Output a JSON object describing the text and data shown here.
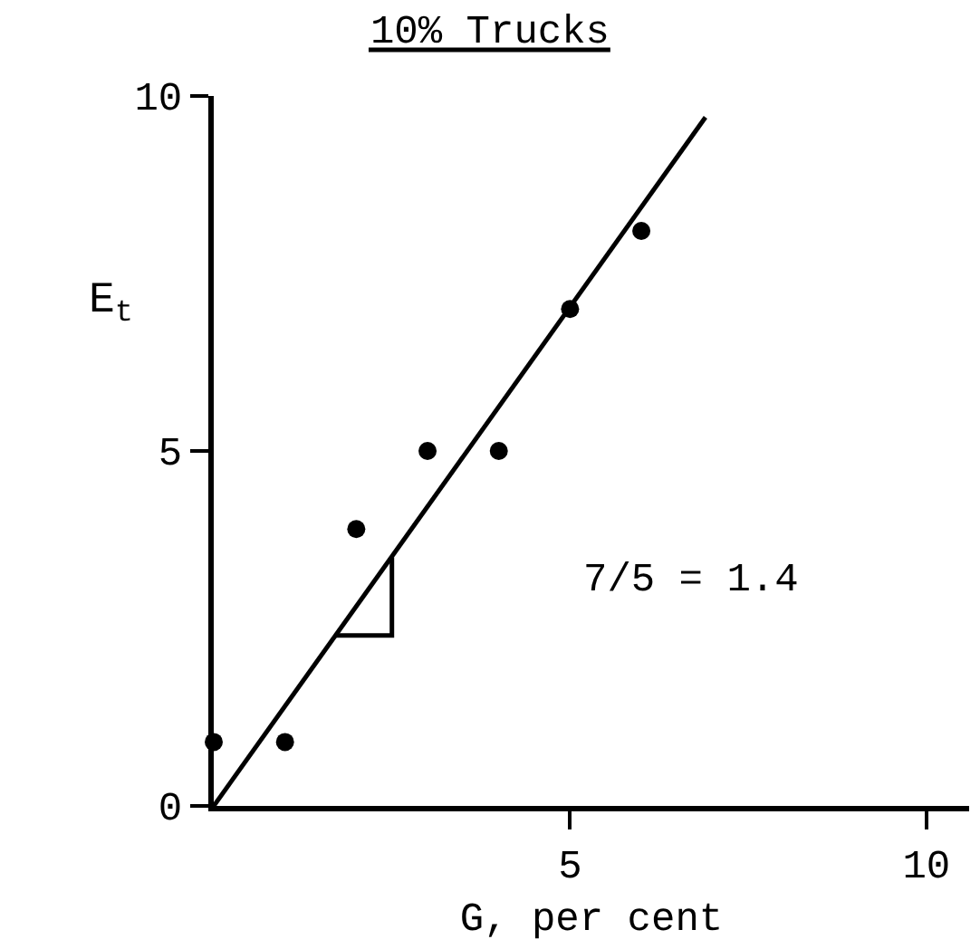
{
  "chart_data": {
    "type": "scatter",
    "title": "10% Trucks",
    "xlabel": "G, per cent",
    "ylabel": "E$_{t}$",
    "series": [
      {
        "color": "#000000",
        "marker": "circle",
        "x": [
          0,
          1,
          2,
          3,
          4,
          5,
          6
        ],
        "values": [
          0.9,
          0.9,
          3.9,
          5,
          5,
          7,
          8.1
        ]
      },
      {
        "type": "line",
        "color": "#000000",
        "marker": "none",
        "x": [
          0,
          6.9
        ],
        "values": [
          0,
          9.7
        ]
      },
      {
        "type": "line",
        "color": "#000000",
        "marker": "none",
        "x": [
          1.7,
          2.5,
          2.5
        ],
        "values": [
          2.4,
          2.4,
          3.5
        ]
      }
    ],
    "annotations": [
      "7/5 = 1.4"
    ],
    "xlim": [
      0,
      10.6
    ],
    "ylim": [
      0,
      10
    ],
    "xticks": [
      5,
      10
    ],
    "yticks": [
      0,
      5,
      10
    ]
  }
}
